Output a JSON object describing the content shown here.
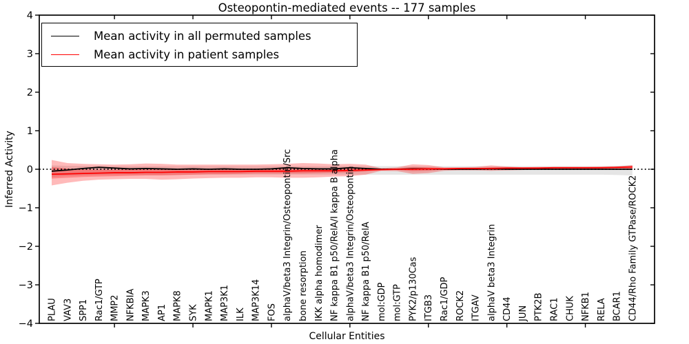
{
  "chart_data": {
    "type": "line",
    "title": "Osteopontin-mediated events -- 177 samples",
    "xlabel": "Cellular Entities",
    "ylabel": "Inferred Activity",
    "ylim": [
      -4,
      4
    ],
    "ytick_values": [
      -4,
      -3,
      -2,
      -1,
      0,
      1,
      2,
      3,
      4
    ],
    "ytick_labels": [
      "−4",
      "−3",
      "−2",
      "−1",
      "0",
      "1",
      "2",
      "3",
      "4"
    ],
    "x_major_tick_indices": [
      4,
      9,
      14,
      19,
      24,
      29,
      34
    ],
    "grid": false,
    "legend_position": "upper left",
    "zero_line": {
      "value": 0,
      "style": "dotted",
      "color": "#000000"
    },
    "categories": [
      "PLAU",
      "VAV3",
      "SPP1",
      "Rac1/GTP",
      "MMP2",
      "NFKBIA",
      "MAPK3",
      "AP1",
      "MAPK8",
      "SYK",
      "MAPK1",
      "MAP3K1",
      "ILK",
      "MAP3K14",
      "FOS",
      "alphaV/beta3 Integrin/Osteopontin/Src",
      "bone resorption",
      "IKK alpha homodimer",
      "NF kappa B1 p50/RelA/I kappa B alpha",
      "alphaV/beta3 Integrin/Osteopontin",
      "NF kappa B1 p50/RelA",
      "mol:GDP",
      "mol:GTP",
      "PYK2/p130Cas",
      "ITGB3",
      "Rac1/GDP",
      "ROCK2",
      "ITGAV",
      "alphaV beta3 Integrin",
      "CD44",
      "JUN",
      "PTK2B",
      "RAC1",
      "CHUK",
      "NFKB1",
      "RELA",
      "BCAR1",
      "CD44/Rho Family GTPase/ROCK2"
    ],
    "series": [
      {
        "key": "permuted",
        "name": "Mean activity in all permuted samples",
        "color": "#000000",
        "style": "solid",
        "values": [
          -0.05,
          -0.02,
          0.02,
          0.05,
          0.03,
          0.01,
          0.02,
          0.01,
          0.0,
          0.01,
          0.0,
          0.01,
          0.0,
          0.0,
          0.01,
          0.04,
          0.02,
          0.01,
          0.01,
          0.04,
          0.02,
          0.0,
          0.0,
          0.01,
          0.01,
          0.0,
          0.0,
          0.0,
          0.01,
          0.0,
          0.0,
          0.0,
          0.0,
          0.0,
          0.0,
          0.0,
          0.0,
          0.0
        ]
      },
      {
        "key": "patient",
        "name": "Mean activity in patient samples",
        "color": "#ff0000",
        "style": "solid",
        "values": [
          -0.13,
          -0.12,
          -0.11,
          -0.1,
          -0.09,
          -0.09,
          -0.08,
          -0.08,
          -0.07,
          -0.07,
          -0.06,
          -0.06,
          -0.06,
          -0.05,
          -0.05,
          -0.05,
          -0.04,
          -0.04,
          -0.04,
          -0.03,
          -0.02,
          -0.01,
          0.0,
          0.0,
          0.01,
          0.01,
          0.02,
          0.02,
          0.02,
          0.03,
          0.03,
          0.03,
          0.04,
          0.04,
          0.04,
          0.04,
          0.05,
          0.06
        ]
      }
    ],
    "bands": [
      {
        "key": "permuted-range",
        "color": "#000000",
        "opacity": 0.1,
        "upper": [
          0.1,
          0.09,
          0.09,
          0.08,
          0.08,
          0.08,
          0.08,
          0.08,
          0.08,
          0.08,
          0.08,
          0.08,
          0.08,
          0.08,
          0.08,
          0.08,
          0.08,
          0.08,
          0.08,
          0.08,
          0.08,
          0.08,
          0.08,
          0.08,
          0.08,
          0.08,
          0.08,
          0.08,
          0.08,
          0.08,
          0.08,
          0.08,
          0.08,
          0.08,
          0.08,
          0.08,
          0.09,
          0.11
        ],
        "lower": [
          -0.2,
          -0.17,
          -0.16,
          -0.15,
          -0.15,
          -0.15,
          -0.15,
          -0.15,
          -0.15,
          -0.14,
          -0.14,
          -0.14,
          -0.14,
          -0.14,
          -0.14,
          -0.14,
          -0.14,
          -0.14,
          -0.14,
          -0.14,
          -0.14,
          -0.14,
          -0.14,
          -0.14,
          -0.14,
          -0.14,
          -0.14,
          -0.14,
          -0.14,
          -0.14,
          -0.14,
          -0.14,
          -0.14,
          -0.14,
          -0.14,
          -0.14,
          -0.15,
          -0.16
        ]
      },
      {
        "key": "patient-outer",
        "color": "#ff0000",
        "opacity": 0.27,
        "upper": [
          0.24,
          0.16,
          0.14,
          0.13,
          0.12,
          0.13,
          0.15,
          0.14,
          0.12,
          0.12,
          0.12,
          0.12,
          0.12,
          0.12,
          0.13,
          0.14,
          0.16,
          0.15,
          0.13,
          0.14,
          0.12,
          0.03,
          0.05,
          0.13,
          0.11,
          0.05,
          0.05,
          0.06,
          0.1,
          0.07,
          0.05,
          0.06,
          0.06,
          0.06,
          0.06,
          0.07,
          0.07,
          0.11
        ],
        "lower": [
          -0.42,
          -0.35,
          -0.3,
          -0.27,
          -0.26,
          -0.25,
          -0.25,
          -0.27,
          -0.26,
          -0.24,
          -0.23,
          -0.22,
          -0.22,
          -0.21,
          -0.21,
          -0.22,
          -0.22,
          -0.21,
          -0.19,
          -0.18,
          -0.14,
          -0.04,
          -0.05,
          -0.12,
          -0.1,
          -0.04,
          -0.03,
          -0.03,
          -0.04,
          -0.03,
          -0.02,
          -0.01,
          -0.01,
          -0.01,
          -0.01,
          0.0,
          0.0,
          0.01
        ]
      },
      {
        "key": "patient-inner",
        "color": "#ff0000",
        "opacity": 0.27,
        "upper": [
          0.06,
          0.02,
          0.0,
          -0.01,
          -0.01,
          0.0,
          0.0,
          0.01,
          0.0,
          0.01,
          0.0,
          0.0,
          0.01,
          0.01,
          0.01,
          0.02,
          0.02,
          0.02,
          0.02,
          0.03,
          0.02,
          0.01,
          0.02,
          0.06,
          0.05,
          0.03,
          0.03,
          0.03,
          0.05,
          0.04,
          0.04,
          0.04,
          0.04,
          0.05,
          0.05,
          0.05,
          0.05,
          0.08
        ],
        "lower": [
          -0.24,
          -0.22,
          -0.2,
          -0.19,
          -0.18,
          -0.17,
          -0.16,
          -0.16,
          -0.15,
          -0.14,
          -0.13,
          -0.13,
          -0.12,
          -0.11,
          -0.11,
          -0.11,
          -0.11,
          -0.1,
          -0.09,
          -0.08,
          -0.06,
          -0.02,
          -0.02,
          -0.05,
          -0.04,
          -0.01,
          -0.01,
          -0.01,
          -0.02,
          -0.01,
          0.0,
          0.0,
          0.01,
          0.01,
          0.01,
          0.02,
          0.02,
          0.02
        ]
      }
    ]
  }
}
